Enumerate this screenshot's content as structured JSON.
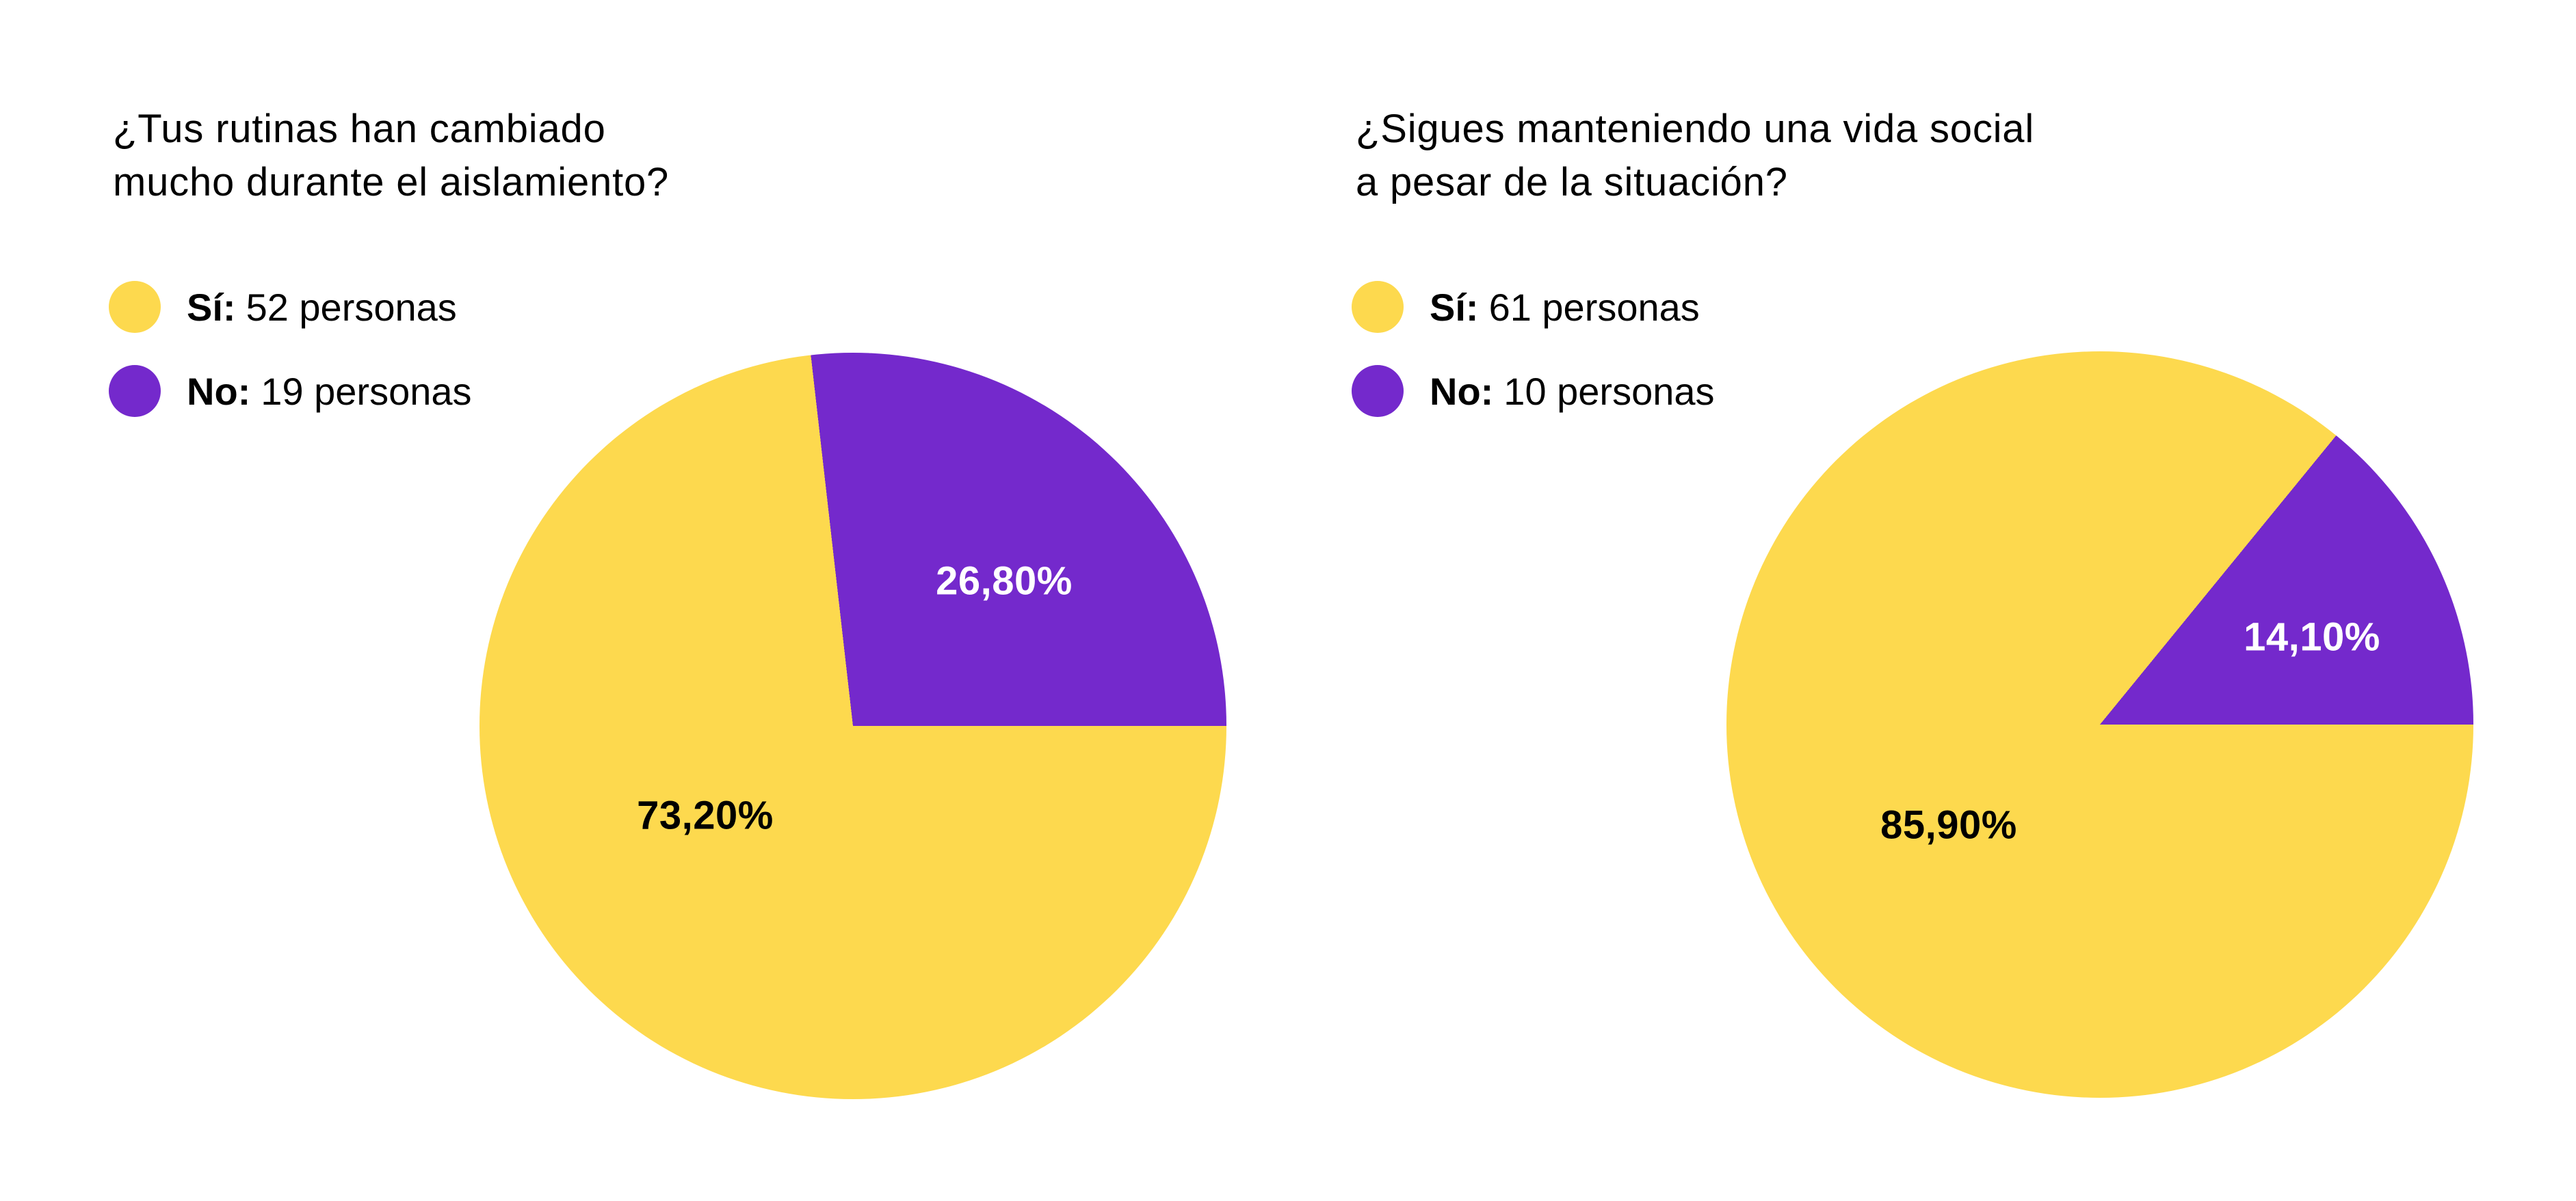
{
  "background": "#ffffff",
  "palette": {
    "yes_color": "#FDD94E",
    "no_color": "#7429CC",
    "label_on_dark": "#ffffff",
    "label_on_light": "#000000",
    "title_color": "#000000"
  },
  "chart_data": [
    {
      "type": "pie",
      "title": "¿Tus rutinas han cambiado mucho durante el aislamiento?",
      "title_lines": [
        "¿Tus rutinas han cambiado",
        "mucho durante el aislamiento?"
      ],
      "categories": [
        "Sí",
        "No"
      ],
      "values": [
        52,
        19
      ],
      "value_unit": "personas",
      "percentages": [
        73.2,
        26.8
      ],
      "percent_labels": [
        "73,20%",
        "26,80%"
      ],
      "colors": [
        "#FDD94E",
        "#7429CC"
      ],
      "legend_position": "top-left",
      "legend": [
        {
          "key": "Sí:",
          "text": "52 personas"
        },
        {
          "key": "No:",
          "text": "19 personas"
        }
      ],
      "start_angle_deg": 90,
      "direction": "clockwise"
    },
    {
      "type": "pie",
      "title": "¿Sigues manteniendo una vida social a pesar de la situación?",
      "title_lines": [
        "¿Sigues manteniendo una vida social",
        "a pesar de la situación?"
      ],
      "categories": [
        "Sí",
        "No"
      ],
      "values": [
        61,
        10
      ],
      "value_unit": "personas",
      "percentages": [
        85.9,
        14.1
      ],
      "percent_labels": [
        "85,90%",
        "14,10%"
      ],
      "colors": [
        "#FDD94E",
        "#7429CC"
      ],
      "legend_position": "top-left",
      "legend": [
        {
          "key": "Sí:",
          "text": "61 personas"
        },
        {
          "key": "No:",
          "text": "10 personas"
        }
      ],
      "start_angle_deg": 90,
      "direction": "clockwise"
    }
  ]
}
